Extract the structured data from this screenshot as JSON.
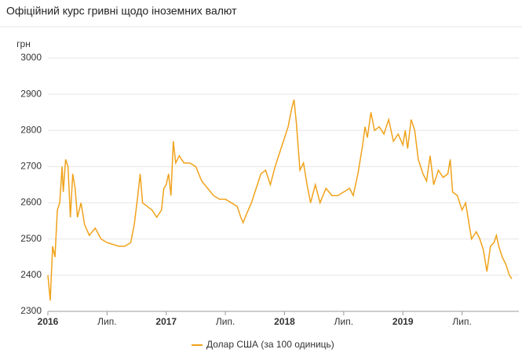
{
  "chart_data": {
    "type": "line",
    "title": "Офіційний курс гривні щодо іноземних валют",
    "y_label": "грн",
    "x": [
      2016.0,
      2016.02,
      2016.04,
      2016.06,
      2016.08,
      2016.1,
      2016.12,
      2016.13,
      2016.15,
      2016.17,
      2016.19,
      2016.21,
      2016.23,
      2016.25,
      2016.28,
      2016.31,
      2016.35,
      2016.4,
      2016.45,
      2016.5,
      2016.55,
      2016.6,
      2016.65,
      2016.7,
      2016.73,
      2016.76,
      2016.78,
      2016.8,
      2016.84,
      2016.88,
      2016.92,
      2016.96,
      2016.98,
      2017.0,
      2017.02,
      2017.04,
      2017.06,
      2017.08,
      2017.11,
      2017.15,
      2017.2,
      2017.25,
      2017.3,
      2017.35,
      2017.4,
      2017.45,
      2017.5,
      2017.55,
      2017.6,
      2017.63,
      2017.65,
      2017.68,
      2017.72,
      2017.76,
      2017.8,
      2017.84,
      2017.88,
      2017.92,
      2017.96,
      2018.0,
      2018.03,
      2018.06,
      2018.08,
      2018.1,
      2018.13,
      2018.16,
      2018.19,
      2018.22,
      2018.26,
      2018.3,
      2018.35,
      2018.4,
      2018.45,
      2018.5,
      2018.55,
      2018.58,
      2018.62,
      2018.66,
      2018.68,
      2018.7,
      2018.73,
      2018.76,
      2018.8,
      2018.84,
      2018.88,
      2018.92,
      2018.96,
      2019.0,
      2019.02,
      2019.04,
      2019.07,
      2019.1,
      2019.13,
      2019.17,
      2019.2,
      2019.23,
      2019.26,
      2019.3,
      2019.34,
      2019.38,
      2019.4,
      2019.42,
      2019.46,
      2019.5,
      2019.53,
      2019.56,
      2019.58,
      2019.62,
      2019.65,
      2019.68,
      2019.71,
      2019.74,
      2019.77,
      2019.79,
      2019.81,
      2019.84,
      2019.87,
      2019.9,
      2019.92
    ],
    "series": [
      {
        "name": "Долар США (за 100 одиниць)",
        "color": "#f0a21a",
        "values": [
          2400,
          2330,
          2480,
          2450,
          2580,
          2600,
          2700,
          2630,
          2720,
          2700,
          2560,
          2680,
          2640,
          2560,
          2600,
          2540,
          2510,
          2530,
          2500,
          2490,
          2485,
          2480,
          2480,
          2490,
          2540,
          2620,
          2680,
          2600,
          2590,
          2580,
          2560,
          2580,
          2640,
          2650,
          2680,
          2620,
          2770,
          2710,
          2730,
          2710,
          2710,
          2700,
          2660,
          2640,
          2620,
          2610,
          2610,
          2600,
          2590,
          2560,
          2545,
          2570,
          2600,
          2640,
          2680,
          2690,
          2650,
          2700,
          2740,
          2780,
          2810,
          2860,
          2885,
          2820,
          2690,
          2710,
          2650,
          2600,
          2650,
          2600,
          2640,
          2620,
          2620,
          2630,
          2640,
          2620,
          2680,
          2760,
          2810,
          2780,
          2850,
          2800,
          2810,
          2790,
          2830,
          2770,
          2790,
          2760,
          2800,
          2750,
          2830,
          2800,
          2720,
          2680,
          2660,
          2730,
          2650,
          2690,
          2670,
          2680,
          2720,
          2630,
          2620,
          2580,
          2600,
          2540,
          2500,
          2520,
          2500,
          2470,
          2410,
          2480,
          2490,
          2510,
          2480,
          2450,
          2430,
          2400,
          2390
        ]
      }
    ],
    "xlim": [
      2016,
      2019.98
    ],
    "xticks": [
      2016,
      {
        "value": 2016.5,
        "label": "Лип."
      },
      2017,
      {
        "value": 2017.5,
        "label": "Лип."
      },
      2018,
      {
        "value": 2018.5,
        "label": "Лип."
      },
      2019,
      {
        "value": 2019.5,
        "label": "Лип."
      }
    ],
    "ylim": [
      2300,
      3000
    ],
    "yticks": [
      2300,
      2400,
      2500,
      2600,
      2700,
      2800,
      2900,
      3000
    ],
    "grid": true,
    "legend": "bottom"
  }
}
